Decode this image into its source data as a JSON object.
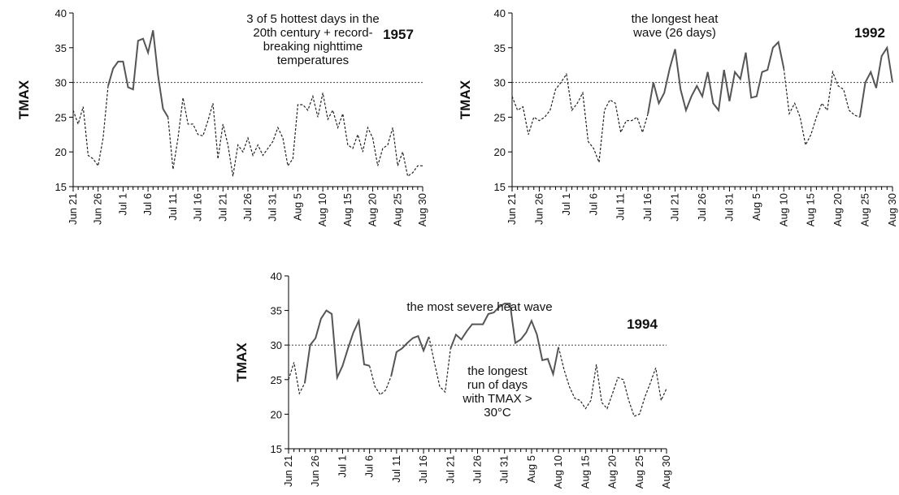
{
  "chart_data": [
    {
      "type": "line",
      "year": "1957",
      "y_label": "TMAX",
      "annotations": [
        {
          "lines": [
            "3 of 5 hottest days in the",
            "20th century + record-",
            "breaking nighttime",
            "temperatures"
          ]
        }
      ],
      "categories": [
        "Jun 21",
        null,
        null,
        null,
        null,
        "Jun 26",
        null,
        null,
        null,
        null,
        "Jul 1",
        null,
        null,
        null,
        null,
        "Jul 6",
        null,
        null,
        null,
        null,
        "Jul 11",
        null,
        null,
        null,
        null,
        "Jul 16",
        null,
        null,
        null,
        null,
        "Jul 21",
        null,
        null,
        null,
        null,
        "Jul 26",
        null,
        null,
        null,
        null,
        "Jul 31",
        null,
        null,
        null,
        null,
        "Aug 5",
        null,
        null,
        null,
        null,
        "Aug 10",
        null,
        null,
        null,
        null,
        "Aug 15",
        null,
        null,
        null,
        null,
        "Aug 20",
        null,
        null,
        null,
        null,
        "Aug 25",
        null,
        null,
        null,
        null,
        "Aug 30"
      ],
      "series": [
        {
          "style": "dashed",
          "color": "#222222",
          "values": [
            26,
            24,
            26.5,
            19.5,
            19,
            18,
            22,
            29.5,
            null,
            null,
            null,
            null,
            null,
            null,
            null,
            null,
            null,
            null,
            null,
            25,
            17.5,
            22,
            27.8,
            24,
            24,
            22.5,
            22.3,
            24.5,
            27,
            19,
            24,
            21,
            16.5,
            21,
            20,
            22,
            19.5,
            21,
            19.5,
            20.5,
            21.5,
            23.5,
            22,
            18,
            19,
            26.8,
            26.8,
            26,
            28,
            25,
            28.5,
            24.7,
            26,
            23.5,
            25.5,
            21,
            20.5,
            22.5,
            20,
            23.5,
            22,
            18,
            20.5,
            21,
            23.5,
            18,
            20,
            16.5,
            17,
            18,
            18
          ]
        },
        {
          "style": "solid",
          "color": "#555555",
          "values": [
            null,
            null,
            null,
            null,
            null,
            null,
            null,
            29.5,
            32,
            33,
            33,
            29.3,
            29,
            36,
            36.3,
            34.3,
            37.5,
            31,
            26.2,
            25,
            null,
            null,
            null,
            null,
            null,
            null,
            null,
            null,
            null,
            null,
            null,
            null,
            null,
            null,
            null,
            null,
            null,
            null,
            null,
            null,
            null,
            null,
            null,
            null,
            null,
            null,
            null,
            null,
            null,
            null,
            null,
            null,
            null,
            null,
            null,
            null,
            null,
            null,
            null,
            null,
            null,
            null,
            null,
            null,
            null,
            null,
            null,
            null,
            null,
            null,
            null
          ]
        }
      ],
      "ylim": [
        15,
        40
      ],
      "yticks": [
        15,
        20,
        25,
        30,
        35,
        40
      ],
      "threshold": 30
    },
    {
      "type": "line",
      "year": "1992",
      "y_label": "TMAX",
      "annotations": [
        {
          "lines": [
            "the longest heat",
            "wave (26 days)"
          ]
        }
      ],
      "categories": [
        "Jun 21",
        null,
        null,
        null,
        null,
        "Jun 26",
        null,
        null,
        null,
        null,
        "Jul 1",
        null,
        null,
        null,
        null,
        "Jul 6",
        null,
        null,
        null,
        null,
        "Jul 11",
        null,
        null,
        null,
        null,
        "Jul 16",
        null,
        null,
        null,
        null,
        "Jul 21",
        null,
        null,
        null,
        null,
        "Jul 26",
        null,
        null,
        null,
        null,
        "Jul 31",
        null,
        null,
        null,
        null,
        "Aug 5",
        null,
        null,
        null,
        null,
        "Aug 10",
        null,
        null,
        null,
        null,
        "Aug 15",
        null,
        null,
        null,
        null,
        "Aug 20",
        null,
        null,
        null,
        null,
        "Aug 25",
        null,
        null,
        null,
        null,
        "Aug 30"
      ],
      "series": [
        {
          "style": "dashed",
          "color": "#222222",
          "values": [
            28,
            26,
            26.5,
            22.5,
            25,
            24.5,
            25,
            26,
            29,
            30,
            31.2,
            26,
            27,
            28.5,
            21.5,
            20.5,
            18.5,
            26,
            27.5,
            27,
            22.8,
            24.5,
            24.5,
            25,
            22.8,
            25.5,
            null,
            null,
            null,
            null,
            null,
            null,
            null,
            null,
            null,
            null,
            null,
            null,
            null,
            null,
            null,
            null,
            null,
            null,
            null,
            null,
            null,
            null,
            null,
            null,
            32,
            25.5,
            27,
            25,
            21,
            22.5,
            25,
            27,
            26,
            31.5,
            29.5,
            29,
            26,
            25.3,
            25,
            null,
            null,
            null,
            null,
            null,
            null
          ]
        },
        {
          "style": "solid",
          "color": "#555555",
          "values": [
            null,
            null,
            null,
            null,
            null,
            null,
            null,
            null,
            null,
            null,
            null,
            null,
            null,
            null,
            null,
            null,
            null,
            null,
            null,
            null,
            null,
            null,
            null,
            null,
            null,
            25.5,
            30,
            27,
            28.5,
            32,
            34.8,
            29,
            26,
            28,
            29.5,
            28,
            31.5,
            27,
            26,
            31.8,
            27.3,
            31.5,
            30.5,
            34.3,
            27.8,
            28,
            31.5,
            31.8,
            35,
            35.8,
            32,
            null,
            null,
            null,
            null,
            null,
            null,
            null,
            null,
            null,
            null,
            null,
            null,
            null,
            25,
            30,
            31.5,
            29.2,
            33.8,
            35,
            30
          ]
        }
      ],
      "ylim": [
        15,
        40
      ],
      "yticks": [
        15,
        20,
        25,
        30,
        35,
        40
      ],
      "threshold": 30
    },
    {
      "type": "line",
      "year": "1994",
      "y_label": "TMAX",
      "annotations": [
        {
          "lines": [
            "the most severe heat wave"
          ]
        },
        {
          "lines": [
            "the longest",
            "run of days",
            "with TMAX >",
            "30°C"
          ]
        }
      ],
      "categories": [
        "Jun 21",
        null,
        null,
        null,
        null,
        "Jun 26",
        null,
        null,
        null,
        null,
        "Jul 1",
        null,
        null,
        null,
        null,
        "Jul 6",
        null,
        null,
        null,
        null,
        "Jul 11",
        null,
        null,
        null,
        null,
        "Jul 16",
        null,
        null,
        null,
        null,
        "Jul 21",
        null,
        null,
        null,
        null,
        "Jul 26",
        null,
        null,
        null,
        null,
        "Jul 31",
        null,
        null,
        null,
        null,
        "Aug 5",
        null,
        null,
        null,
        null,
        "Aug 10",
        null,
        null,
        null,
        null,
        "Aug 15",
        null,
        null,
        null,
        null,
        "Aug 20",
        null,
        null,
        null,
        null,
        "Aug 25",
        null,
        null,
        null,
        null,
        "Aug 30"
      ],
      "series": [
        {
          "style": "dashed",
          "color": "#222222",
          "values": [
            25,
            27.5,
            23,
            24.5,
            null,
            null,
            null,
            null,
            null,
            null,
            null,
            null,
            null,
            null,
            null,
            27,
            24,
            22.8,
            23.5,
            25.5,
            null,
            null,
            null,
            null,
            null,
            null,
            31.2,
            27.5,
            24,
            23.2,
            29.5,
            null,
            null,
            null,
            null,
            null,
            null,
            null,
            null,
            null,
            null,
            null,
            null,
            null,
            null,
            null,
            null,
            null,
            null,
            null,
            29.7,
            26.5,
            24,
            22.3,
            22,
            20.8,
            22,
            27.2,
            21.7,
            20.8,
            23,
            25.3,
            25,
            22,
            19.7,
            20,
            22.5,
            24.5,
            26.7,
            22,
            23.7
          ]
        },
        {
          "style": "solid",
          "color": "#555555",
          "values": [
            null,
            null,
            null,
            24.5,
            30,
            31,
            33.8,
            35,
            34.5,
            25.3,
            27,
            29.5,
            31.8,
            33.5,
            27.2,
            27,
            null,
            null,
            null,
            25.5,
            29,
            29.5,
            30.3,
            31,
            31.3,
            29.2,
            31.2,
            null,
            null,
            null,
            29.5,
            31.5,
            30.8,
            32,
            33,
            33,
            33,
            34.5,
            34.7,
            35.5,
            36,
            36,
            30.3,
            30.8,
            31.8,
            33.5,
            31.5,
            27.8,
            28,
            25.8,
            29.7,
            null,
            null,
            null,
            null,
            null,
            null,
            null,
            null,
            null,
            null,
            null,
            null,
            null,
            null,
            null,
            null,
            null,
            null,
            null,
            null
          ]
        }
      ],
      "ylim": [
        15,
        40
      ],
      "yticks": [
        15,
        20,
        25,
        30,
        35,
        40
      ],
      "threshold": 30
    }
  ]
}
